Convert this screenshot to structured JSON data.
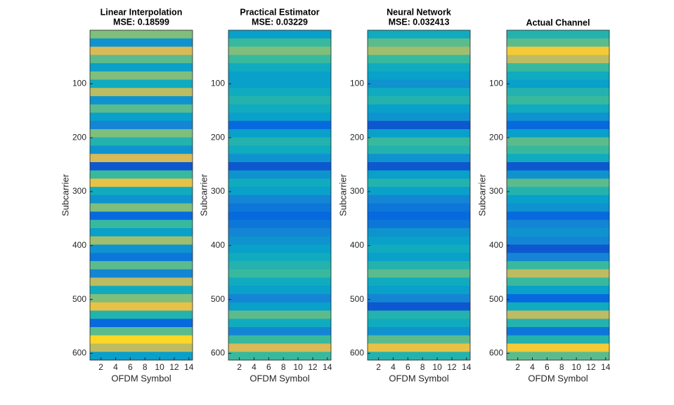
{
  "chart_data": [
    {
      "type": "heatmap",
      "title": "Linear Interpolation",
      "subtitle": "MSE: 0.18599",
      "xlabel": "OFDM Symbol",
      "ylabel": "Subcarrier",
      "xlim": [
        0.5,
        14.5
      ],
      "xticks": [
        2,
        4,
        6,
        8,
        10,
        12,
        14
      ],
      "ylim": [
        0.5,
        612.5
      ],
      "yticks": [
        100,
        200,
        300,
        400,
        500,
        600
      ],
      "yreverse": true,
      "values": [
        0.6,
        0.3,
        0.75,
        0.55,
        0.35,
        0.6,
        0.4,
        0.7,
        0.3,
        0.55,
        0.35,
        0.25,
        0.6,
        0.45,
        0.3,
        0.75,
        0.1,
        0.5,
        0.8,
        0.4,
        0.3,
        0.6,
        0.15,
        0.5,
        0.35,
        0.65,
        0.3,
        0.2,
        0.55,
        0.25,
        0.7,
        0.4,
        0.6,
        0.8,
        0.45,
        0.15,
        0.55,
        0.9,
        0.7,
        0.35
      ]
    },
    {
      "type": "heatmap",
      "title": "Practical Estimator",
      "subtitle": "MSE: 0.03229",
      "xlabel": "OFDM Symbol",
      "ylabel": "Subcarrier",
      "xlim": [
        0.5,
        14.5
      ],
      "xticks": [
        2,
        4,
        6,
        8,
        10,
        12,
        14
      ],
      "ylim": [
        0.5,
        612.5
      ],
      "yticks": [
        100,
        200,
        300,
        400,
        500,
        600
      ],
      "yreverse": true,
      "values": [
        0.35,
        0.5,
        0.6,
        0.5,
        0.4,
        0.35,
        0.35,
        0.4,
        0.45,
        0.4,
        0.35,
        0.15,
        0.35,
        0.45,
        0.4,
        0.3,
        0.1,
        0.3,
        0.4,
        0.35,
        0.25,
        0.2,
        0.15,
        0.2,
        0.25,
        0.3,
        0.35,
        0.4,
        0.45,
        0.5,
        0.4,
        0.35,
        0.25,
        0.35,
        0.55,
        0.4,
        0.25,
        0.5,
        0.75,
        0.5
      ]
    },
    {
      "type": "heatmap",
      "title": "Neural Network",
      "subtitle": "MSE: 0.032413",
      "xlabel": "OFDM Symbol",
      "ylabel": "Subcarrier",
      "xlim": [
        0.5,
        14.5
      ],
      "xticks": [
        2,
        4,
        6,
        8,
        10,
        12,
        14
      ],
      "ylim": [
        0.5,
        612.5
      ],
      "yticks": [
        100,
        200,
        300,
        400,
        500,
        600
      ],
      "yreverse": true,
      "values": [
        0.4,
        0.55,
        0.65,
        0.5,
        0.4,
        0.35,
        0.3,
        0.4,
        0.45,
        0.35,
        0.3,
        0.1,
        0.35,
        0.5,
        0.45,
        0.3,
        0.1,
        0.35,
        0.45,
        0.35,
        0.25,
        0.2,
        0.15,
        0.2,
        0.3,
        0.35,
        0.4,
        0.35,
        0.45,
        0.55,
        0.4,
        0.35,
        0.25,
        0.1,
        0.45,
        0.4,
        0.3,
        0.55,
        0.8,
        0.45
      ]
    },
    {
      "type": "heatmap",
      "title": "Actual Channel",
      "xlabel": "OFDM Symbol",
      "ylabel": "Subcarrier",
      "xlim": [
        0.5,
        14.5
      ],
      "xticks": [
        2,
        4,
        6,
        8,
        10,
        12,
        14
      ],
      "ylim": [
        0.5,
        612.5
      ],
      "yticks": [
        100,
        200,
        300,
        400,
        500,
        600
      ],
      "yreverse": true,
      "values": [
        0.45,
        0.55,
        0.85,
        0.7,
        0.5,
        0.4,
        0.35,
        0.45,
        0.5,
        0.4,
        0.3,
        0.15,
        0.35,
        0.55,
        0.5,
        0.4,
        0.1,
        0.3,
        0.55,
        0.45,
        0.35,
        0.3,
        0.15,
        0.25,
        0.3,
        0.25,
        0.1,
        0.25,
        0.5,
        0.7,
        0.5,
        0.35,
        0.15,
        0.4,
        0.7,
        0.45,
        0.2,
        0.45,
        0.85,
        0.55
      ]
    }
  ],
  "colormap": [
    "#352a87",
    "#0363e1",
    "#1485d4",
    "#06a7c6",
    "#38b99e",
    "#92bf73",
    "#d9ba56",
    "#fcce2e",
    "#f9fb0e"
  ]
}
